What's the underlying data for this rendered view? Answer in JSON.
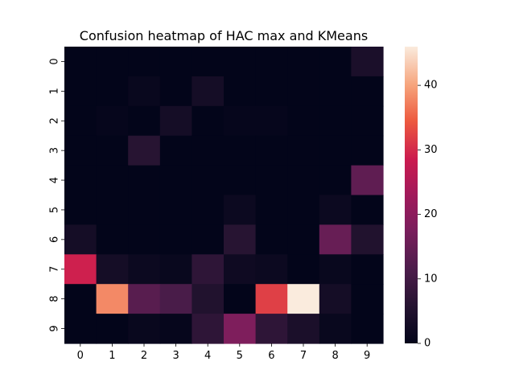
{
  "chart_data": {
    "type": "heatmap",
    "title": "Confusion heatmap of HAC max and KMeans",
    "xlabel": "",
    "ylabel": "",
    "x_categories": [
      "0",
      "1",
      "2",
      "3",
      "4",
      "5",
      "6",
      "7",
      "8",
      "9"
    ],
    "y_categories": [
      "0",
      "1",
      "2",
      "3",
      "4",
      "5",
      "6",
      "7",
      "8",
      "9"
    ],
    "values": [
      [
        0,
        0,
        0,
        0,
        0,
        0,
        0,
        0,
        0,
        4
      ],
      [
        0,
        0,
        1,
        0,
        3,
        0,
        0,
        0,
        0,
        0
      ],
      [
        0,
        0.5,
        0,
        3,
        0,
        0.5,
        0.5,
        0,
        0,
        0
      ],
      [
        0,
        0,
        6,
        0,
        0,
        0,
        0,
        0,
        0,
        0
      ],
      [
        0,
        0,
        0,
        0,
        0,
        0,
        0,
        0,
        0,
        14
      ],
      [
        0,
        0,
        0,
        0,
        0,
        1.5,
        0,
        0,
        1.5,
        0
      ],
      [
        3,
        0,
        0,
        0,
        0,
        6,
        0,
        0,
        15,
        5
      ],
      [
        29,
        3,
        1.5,
        1,
        7,
        2,
        1.5,
        0,
        1,
        0
      ],
      [
        0,
        38,
        13,
        11,
        5,
        0,
        32,
        46,
        3,
        0
      ],
      [
        0,
        0,
        1,
        0.5,
        7,
        18,
        7,
        4,
        1,
        0
      ]
    ],
    "colorbar": {
      "min": 0,
      "max": 46,
      "ticks": [
        0,
        10,
        20,
        30,
        40
      ],
      "colormap": "rocket"
    }
  }
}
